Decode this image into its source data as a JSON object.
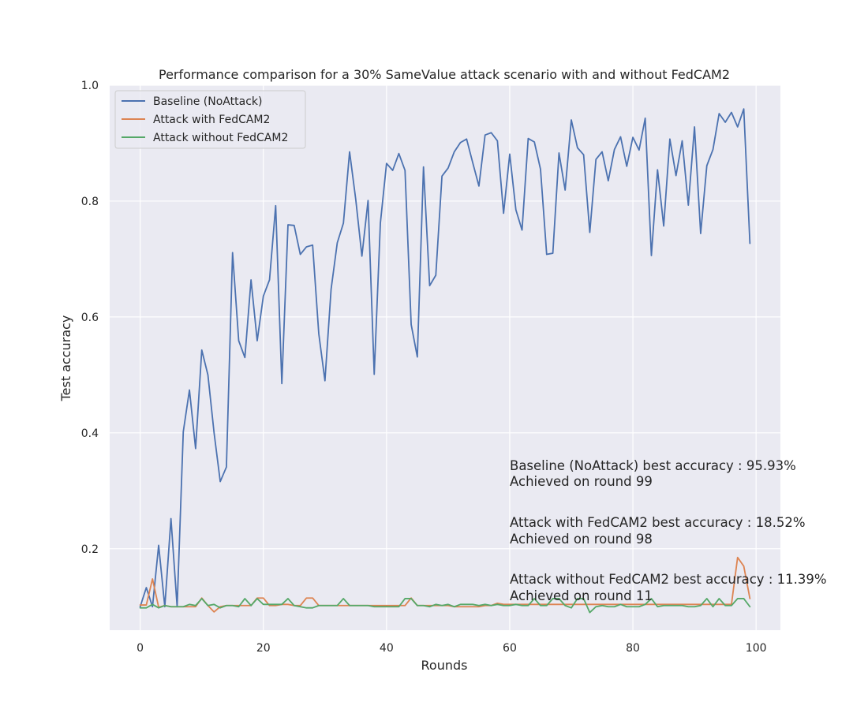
{
  "chart_data": {
    "type": "line",
    "title": "Performance comparison for a 30% SameValue attack scenario with and without FedCAM2",
    "xlabel": "Rounds",
    "ylabel": "Test accuracy",
    "xlim": [
      -4.95,
      103.95
    ],
    "ylim": [
      0.0595,
      1.0
    ],
    "xticks": [
      0,
      20,
      40,
      60,
      80,
      100
    ],
    "yticks": [
      0.2,
      0.4,
      0.6,
      0.8,
      1.0
    ],
    "xtick_labels": [
      "0",
      "20",
      "40",
      "60",
      "80",
      "100"
    ],
    "ytick_labels": [
      "0.2",
      "0.4",
      "0.6",
      "0.8",
      "1.0"
    ],
    "grid": true,
    "legend_position": "upper-left",
    "x": [
      0,
      1,
      2,
      3,
      4,
      5,
      6,
      7,
      8,
      9,
      10,
      11,
      12,
      13,
      14,
      15,
      16,
      17,
      18,
      19,
      20,
      21,
      22,
      23,
      24,
      25,
      26,
      27,
      28,
      29,
      30,
      31,
      32,
      33,
      34,
      35,
      36,
      37,
      38,
      39,
      40,
      41,
      42,
      43,
      44,
      45,
      46,
      47,
      48,
      49,
      50,
      51,
      52,
      53,
      54,
      55,
      56,
      57,
      58,
      59,
      60,
      61,
      62,
      63,
      64,
      65,
      66,
      67,
      68,
      69,
      70,
      71,
      72,
      73,
      74,
      75,
      76,
      77,
      78,
      79,
      80,
      81,
      82,
      83,
      84,
      85,
      86,
      87,
      88,
      89,
      90,
      91,
      92,
      93,
      94,
      95,
      96,
      97,
      98,
      99
    ],
    "series": [
      {
        "name": "Baseline (NoAttack)",
        "color": "#4c72b0",
        "values": [
          0.1,
          0.133,
          0.1,
          0.206,
          0.1,
          0.252,
          0.1,
          0.402,
          0.474,
          0.373,
          0.543,
          0.5,
          0.4,
          0.316,
          0.341,
          0.711,
          0.559,
          0.53,
          0.664,
          0.559,
          0.636,
          0.664,
          0.792,
          0.485,
          0.759,
          0.758,
          0.708,
          0.721,
          0.724,
          0.571,
          0.49,
          0.648,
          0.728,
          0.762,
          0.885,
          0.803,
          0.705,
          0.801,
          0.501,
          0.762,
          0.865,
          0.853,
          0.882,
          0.853,
          0.587,
          0.531,
          0.859,
          0.654,
          0.672,
          0.843,
          0.857,
          0.885,
          0.901,
          0.907,
          0.866,
          0.826,
          0.914,
          0.918,
          0.904,
          0.779,
          0.881,
          0.785,
          0.75,
          0.908,
          0.902,
          0.855,
          0.708,
          0.71,
          0.883,
          0.819,
          0.94,
          0.892,
          0.88,
          0.746,
          0.872,
          0.885,
          0.835,
          0.889,
          0.911,
          0.86,
          0.91,
          0.888,
          0.943,
          0.706,
          0.854,
          0.757,
          0.907,
          0.844,
          0.904,
          0.793,
          0.928,
          0.744,
          0.861,
          0.889,
          0.951,
          0.936,
          0.953,
          0.928,
          0.959,
          0.727
        ]
      },
      {
        "name": "Attack with FedCAM2",
        "color": "#dd8452",
        "values": [
          0.103,
          0.103,
          0.148,
          0.099,
          0.102,
          0.1,
          0.1,
          0.1,
          0.1,
          0.1,
          0.115,
          0.102,
          0.091,
          0.1,
          0.102,
          0.102,
          0.102,
          0.102,
          0.102,
          0.115,
          0.115,
          0.102,
          0.102,
          0.104,
          0.104,
          0.102,
          0.102,
          0.115,
          0.115,
          0.102,
          0.102,
          0.102,
          0.102,
          0.102,
          0.102,
          0.102,
          0.102,
          0.102,
          0.102,
          0.102,
          0.102,
          0.102,
          0.102,
          0.102,
          0.115,
          0.102,
          0.102,
          0.102,
          0.102,
          0.102,
          0.102,
          0.1,
          0.1,
          0.1,
          0.1,
          0.1,
          0.102,
          0.102,
          0.106,
          0.104,
          0.104,
          0.104,
          0.104,
          0.104,
          0.104,
          0.104,
          0.104,
          0.104,
          0.104,
          0.104,
          0.104,
          0.104,
          0.104,
          0.104,
          0.104,
          0.104,
          0.104,
          0.104,
          0.104,
          0.104,
          0.104,
          0.104,
          0.104,
          0.104,
          0.104,
          0.104,
          0.104,
          0.104,
          0.104,
          0.104,
          0.104,
          0.104,
          0.104,
          0.104,
          0.104,
          0.104,
          0.104,
          0.185,
          0.17,
          0.114
        ]
      },
      {
        "name": "Attack without FedCAM2",
        "color": "#55a868",
        "values": [
          0.098,
          0.098,
          0.104,
          0.098,
          0.102,
          0.1,
          0.1,
          0.1,
          0.104,
          0.102,
          0.114,
          0.102,
          0.104,
          0.098,
          0.102,
          0.102,
          0.1,
          0.114,
          0.102,
          0.114,
          0.104,
          0.104,
          0.104,
          0.104,
          0.114,
          0.102,
          0.1,
          0.098,
          0.098,
          0.102,
          0.102,
          0.102,
          0.102,
          0.114,
          0.102,
          0.102,
          0.102,
          0.102,
          0.1,
          0.1,
          0.1,
          0.1,
          0.1,
          0.114,
          0.114,
          0.102,
          0.102,
          0.1,
          0.104,
          0.102,
          0.104,
          0.1,
          0.104,
          0.104,
          0.104,
          0.102,
          0.104,
          0.102,
          0.104,
          0.102,
          0.102,
          0.104,
          0.102,
          0.102,
          0.114,
          0.102,
          0.102,
          0.114,
          0.114,
          0.102,
          0.098,
          0.114,
          0.114,
          0.09,
          0.1,
          0.102,
          0.1,
          0.1,
          0.104,
          0.1,
          0.1,
          0.1,
          0.104,
          0.114,
          0.1,
          0.102,
          0.102,
          0.102,
          0.102,
          0.1,
          0.1,
          0.102,
          0.114,
          0.1,
          0.114,
          0.102,
          0.102,
          0.114,
          0.114,
          0.1
        ]
      }
    ],
    "annotations": [
      {
        "line1": "Baseline (NoAttack) best accuracy : 95.93%",
        "line2": "Achieved on round 99",
        "x": 60,
        "y": 0.3
      },
      {
        "line1": "Attack with FedCAM2 best accuracy : 18.52%",
        "line2": "Achieved on round 98",
        "x": 60,
        "y": 0.2
      },
      {
        "line1": "Attack without FedCAM2 best accuracy : 11.39%",
        "line2": "Achieved on round 11",
        "x": 60,
        "y": 0.1
      }
    ]
  }
}
